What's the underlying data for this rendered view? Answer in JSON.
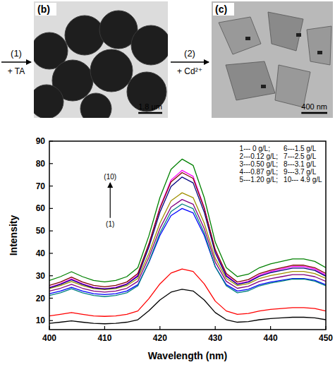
{
  "figure": {
    "panels": [
      {
        "letter": "(b)",
        "scale_bar": "1.8 μm"
      },
      {
        "letter": "(c)",
        "scale_bar": "400 nm"
      }
    ],
    "arrows": [
      {
        "step": "(1)",
        "reagent": "+ TA"
      },
      {
        "step": "(2)",
        "reagent": "+ Cd²⁺"
      }
    ]
  },
  "chart_data": {
    "type": "line",
    "x_label": "Wavelength (nm)",
    "y_label": "Intensity",
    "xlim": [
      400,
      450
    ],
    "xticks": [
      400,
      410,
      420,
      430,
      440,
      450
    ],
    "ylim": [
      6,
      90
    ],
    "yticks": [
      10,
      20,
      30,
      40,
      50,
      60,
      70,
      80,
      90
    ],
    "grid": false,
    "legend": "upper right",
    "annotations": [
      "(10)",
      "(1)"
    ],
    "x": [
      400,
      402,
      404,
      406,
      408,
      410,
      412,
      414,
      416,
      418,
      420,
      422,
      424,
      426,
      428,
      430,
      432,
      434,
      436,
      438,
      440,
      442,
      444,
      446,
      448,
      450
    ],
    "series": [
      {
        "name": "1--- 0 g/L;",
        "color": "#000000",
        "values": [
          8.8,
          9.3,
          9.9,
          9.3,
          8.8,
          8.6,
          8.8,
          9.3,
          10.4,
          14.4,
          19.2,
          22.7,
          24,
          23.2,
          19.2,
          13.6,
          10.4,
          9.3,
          9.6,
          10.4,
          10.9,
          11.2,
          11.5,
          11.5,
          11.2,
          10.4
        ]
      },
      {
        "name": "2---0.12 g/L;",
        "color": "#ff0000",
        "values": [
          12.1,
          12.8,
          13.6,
          12.8,
          12.1,
          11.9,
          12.1,
          12.8,
          14.3,
          19.8,
          26.4,
          31.2,
          33,
          31.9,
          26.4,
          18.7,
          14.3,
          12.8,
          13.2,
          14.3,
          15,
          15.4,
          15.8,
          15.8,
          15.4,
          14.3
        ]
      },
      {
        "name": "3---0.50 g/L;",
        "color": "#0000ff",
        "values": [
          22,
          23.2,
          24.8,
          23.2,
          22,
          21.6,
          22,
          23.2,
          26,
          36,
          48,
          56.8,
          60,
          58,
          48,
          34,
          26,
          23.2,
          24,
          26,
          27.2,
          28,
          28.8,
          28.8,
          28,
          26
        ]
      },
      {
        "name": "4---0.87 g/L;",
        "color": "#008080",
        "values": [
          21.2,
          22.4,
          24.2,
          22.4,
          21.2,
          20.7,
          21.2,
          22.4,
          25.5,
          36.2,
          49.1,
          58.6,
          62,
          59.9,
          49.1,
          34.1,
          25.5,
          22.4,
          23.3,
          25.5,
          26.7,
          27.6,
          28.5,
          28.5,
          27.6,
          25.5
        ]
      },
      {
        "name": "5---1.20 g/L;",
        "color": "#ff00ff",
        "values": [
          24.8,
          26.4,
          28.6,
          26.4,
          24.8,
          24.2,
          24.8,
          26.4,
          30.3,
          44,
          60.5,
          72.6,
          77,
          74.3,
          60.5,
          41.3,
          30.3,
          26.4,
          27.5,
          30.3,
          31.9,
          33,
          34.1,
          34.1,
          33,
          30.3
        ]
      },
      {
        "name": "6---1.5 g/L",
        "color": "#a09000",
        "values": [
          24.3,
          25.6,
          27.4,
          25.6,
          24.3,
          23.8,
          24.3,
          25.6,
          28.8,
          40,
          53.5,
          63.4,
          67,
          64.8,
          53.5,
          37.8,
          28.8,
          25.6,
          26.5,
          28.8,
          30.1,
          31,
          31.9,
          31.9,
          31,
          28.8
        ]
      },
      {
        "name": "7---2.5 g/L",
        "color": "#000080",
        "values": [
          24.6,
          26.2,
          28.2,
          26.2,
          24.6,
          24.1,
          24.6,
          26.2,
          29.8,
          42.8,
          58.4,
          69.8,
          74,
          71.4,
          58.4,
          40.2,
          29.8,
          26.2,
          27.2,
          29.8,
          31.4,
          32.4,
          33.4,
          33.4,
          32.4,
          29.8
        ]
      },
      {
        "name": "8---3.1 g/L",
        "color": "#800080",
        "values": [
          23.2,
          24.4,
          26.2,
          24.4,
          23.2,
          22.7,
          23.2,
          24.4,
          27.5,
          38.2,
          51.1,
          60.6,
          64,
          61.9,
          51.1,
          36.1,
          27.5,
          24.4,
          25.3,
          27.5,
          28.7,
          29.6,
          30.5,
          30.5,
          29.6,
          27.5
        ]
      },
      {
        "name": "9---3.7 g/L",
        "color": "#800000",
        "values": [
          25.7,
          27.2,
          29.4,
          27.2,
          25.7,
          25.1,
          25.7,
          27.2,
          31,
          44.2,
          60.1,
          71.8,
          76,
          73.4,
          60.1,
          41.6,
          31,
          27.2,
          28.3,
          31,
          32.5,
          33.6,
          34.7,
          34.7,
          33.6,
          31
        ]
      },
      {
        "name": "10--- 4.9 g/L",
        "color": "#008000",
        "values": [
          27.9,
          29.6,
          31.8,
          29.6,
          27.9,
          27.3,
          27.9,
          29.6,
          33.6,
          47.8,
          64.9,
          77.4,
          82,
          79.2,
          64.9,
          45,
          33.6,
          29.6,
          30.7,
          33.6,
          35.3,
          36.4,
          37.5,
          37.5,
          36.4,
          33.6
        ]
      }
    ]
  }
}
